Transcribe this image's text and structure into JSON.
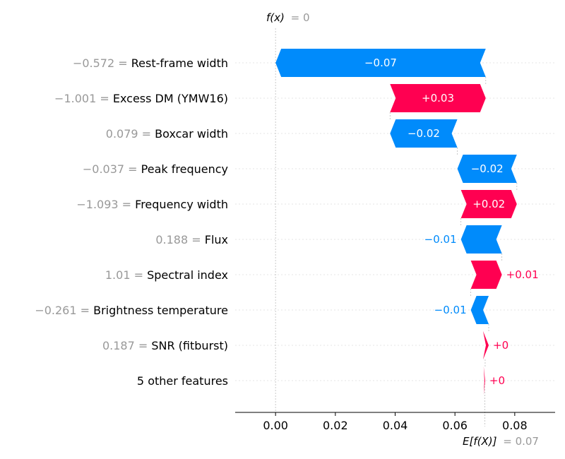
{
  "chart_data": {
    "type": "waterfall",
    "base_value": 0.07,
    "output_value": 0.0,
    "fx_label": "f(x)",
    "fx_value": "= 0",
    "efx_label": "E[f(X)]",
    "efx_value": "= 0.07",
    "xlim": [
      -0.0135,
      0.0935
    ],
    "xticks": [
      0.0,
      0.02,
      0.04,
      0.06,
      0.08
    ],
    "xtick_labels": [
      "0.00",
      "0.02",
      "0.04",
      "0.06",
      "0.08"
    ],
    "features": [
      {
        "value": "−0.572 =",
        "name": "Rest-frame width",
        "start": 0.0703,
        "end": 0.0,
        "label": "−0.07"
      },
      {
        "value": "−1.001 =",
        "name": "Excess DM (YMW16)",
        "start": 0.0383,
        "end": 0.0703,
        "label": "+0.03"
      },
      {
        "value": "0.079 =",
        "name": "Boxcar width",
        "start": 0.0608,
        "end": 0.0383,
        "label": "−0.02"
      },
      {
        "value": "−0.037 =",
        "name": "Peak frequency",
        "start": 0.0807,
        "end": 0.0608,
        "label": "−0.02"
      },
      {
        "value": "−1.093 =",
        "name": "Frequency width",
        "start": 0.062,
        "end": 0.0807,
        "label": "+0.02"
      },
      {
        "value": "0.188 =",
        "name": "Flux",
        "start": 0.0757,
        "end": 0.062,
        "label": "−0.01"
      },
      {
        "value": "1.01 =",
        "name": "Spectral index",
        "start": 0.0653,
        "end": 0.0757,
        "label": "+0.01"
      },
      {
        "value": "−0.261 =",
        "name": "Brightness temperature",
        "start": 0.0713,
        "end": 0.0653,
        "label": "−0.01"
      },
      {
        "value": "0.187 =",
        "name": "SNR (fitburst)",
        "start": 0.0694,
        "end": 0.0713,
        "label": "+0"
      },
      {
        "value": "",
        "name": "5 other features",
        "start": 0.0696,
        "end": 0.0701,
        "label": "+0"
      }
    ],
    "colors": {
      "positive": "#ff0051",
      "negative": "#008bfb",
      "value_text": "#999999",
      "grid": "#cccccc"
    }
  }
}
